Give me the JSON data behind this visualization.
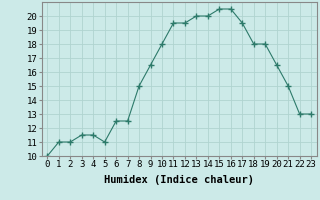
{
  "x": [
    0,
    1,
    2,
    3,
    4,
    5,
    6,
    7,
    8,
    9,
    10,
    11,
    12,
    13,
    14,
    15,
    16,
    17,
    18,
    19,
    20,
    21,
    22,
    23
  ],
  "y": [
    10,
    11,
    11,
    11.5,
    11.5,
    11,
    12.5,
    12.5,
    15,
    16.5,
    18,
    19.5,
    19.5,
    20,
    20,
    20.5,
    20.5,
    19.5,
    18,
    18,
    16.5,
    15,
    13,
    13
  ],
  "line_color": "#2d7a6a",
  "marker": "+",
  "marker_size": 4,
  "bg_color": "#cceae8",
  "grid_color": "#b0d4d0",
  "xlabel": "Humidex (Indice chaleur)",
  "xlim": [
    -0.5,
    23.5
  ],
  "ylim": [
    10,
    21
  ],
  "yticks": [
    10,
    11,
    12,
    13,
    14,
    15,
    16,
    17,
    18,
    19,
    20
  ],
  "xticks": [
    0,
    1,
    2,
    3,
    4,
    5,
    6,
    7,
    8,
    9,
    10,
    11,
    12,
    13,
    14,
    15,
    16,
    17,
    18,
    19,
    20,
    21,
    22,
    23
  ],
  "tick_fontsize": 6.5,
  "label_fontsize": 7.5
}
